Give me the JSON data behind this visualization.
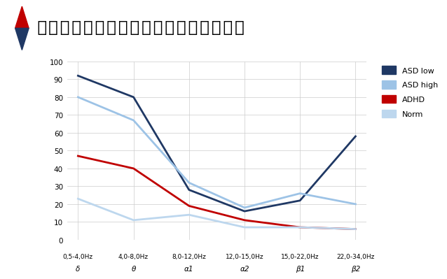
{
  "title": "発達障害者の脳波と健常者の脳波の違い",
  "x_labels_top": [
    "0,5-4,0Hz",
    "4,0-8,0Hz",
    "8,0-12,0Hz",
    "12,0-15,0Hz",
    "15,0-22,0Hz",
    "22,0-34,0Hz"
  ],
  "x_labels_bottom": [
    "δ",
    "θ",
    "α1",
    "α2",
    "β1",
    "β2"
  ],
  "ylim": [
    0,
    100
  ],
  "yticks": [
    0,
    10,
    20,
    30,
    40,
    50,
    60,
    70,
    80,
    90,
    100
  ],
  "series": {
    "ASD low": {
      "values": [
        92,
        80,
        28,
        16,
        22,
        58
      ],
      "color": "#1F3864",
      "linewidth": 2.0
    },
    "ASD high": {
      "values": [
        80,
        67,
        32,
        18,
        26,
        20
      ],
      "color": "#9DC3E6",
      "linewidth": 2.0
    },
    "ADHD": {
      "values": [
        47,
        40,
        19,
        11,
        7,
        6
      ],
      "color": "#C00000",
      "linewidth": 2.0
    },
    "Norm": {
      "values": [
        23,
        11,
        14,
        7,
        7,
        6
      ],
      "color": "#BDD7EE",
      "linewidth": 2.0
    }
  },
  "background_color": "#FFFFFF",
  "plot_bg_color": "#FFFFFF",
  "outer_bg_color": "#E8E8E8",
  "grid_color": "#CCCCCC",
  "legend_order": [
    "ASD low",
    "ASD high",
    "ADHD",
    "Norm"
  ],
  "title_color": "#000000",
  "title_fontsize": 20,
  "title_icon_red": "#C00000",
  "title_icon_blue": "#1F3864"
}
